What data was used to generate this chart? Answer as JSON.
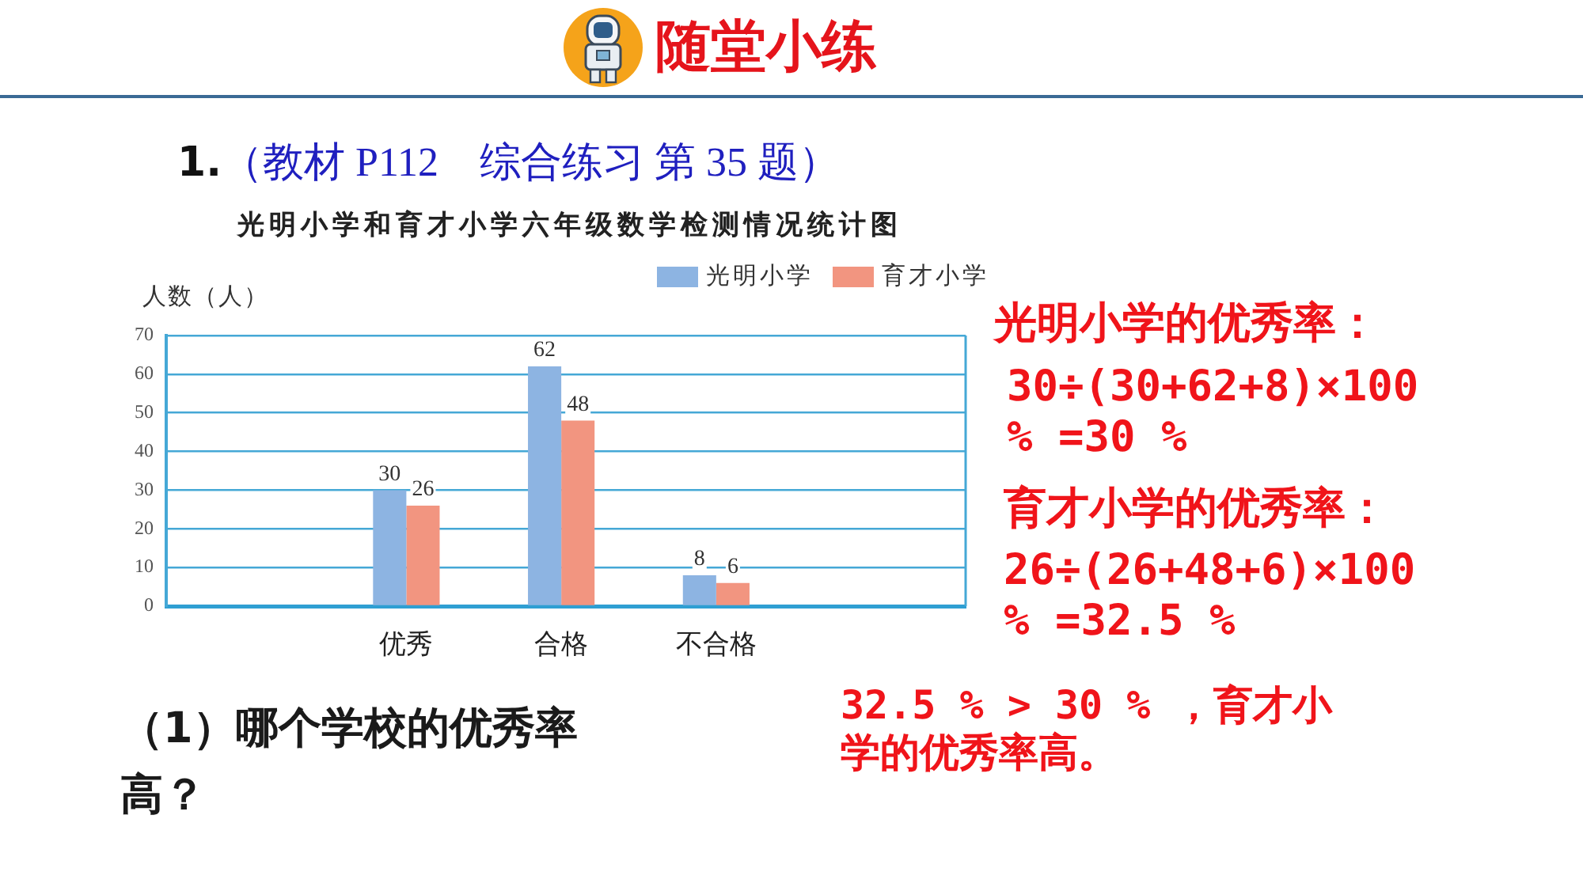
{
  "chart_data": {
    "type": "bar",
    "title": "光明小学和育才小学六年级数学检测情况统计图",
    "ylabel": "人数（人）",
    "categories": [
      "优秀",
      "合格",
      "不合格"
    ],
    "series": [
      {
        "name": "光明小学",
        "color": "#8db4e2",
        "values": [
          30,
          62,
          8
        ]
      },
      {
        "name": "育才小学",
        "color": "#f29580",
        "values": [
          26,
          48,
          6
        ]
      }
    ],
    "ylim": [
      0,
      70
    ],
    "yticks": [
      0,
      10,
      20,
      30,
      40,
      50,
      60,
      70
    ],
    "grid": "y",
    "legend": "top right",
    "data_labels": true,
    "annotations": [
      "随堂小练",
      "1.",
      "（教材 P112　综合练习 第 35 题）",
      "（1）哪个学校的优秀率高？",
      "光明小学的优秀率：",
      "30÷(30+62+8)×100 % =30 %",
      "育才小学的优秀率：",
      "26÷(26+48+6)×100 % =32.5 %",
      "32.5 % > 30 % ，育才小学的优秀率高。"
    ]
  }
}
